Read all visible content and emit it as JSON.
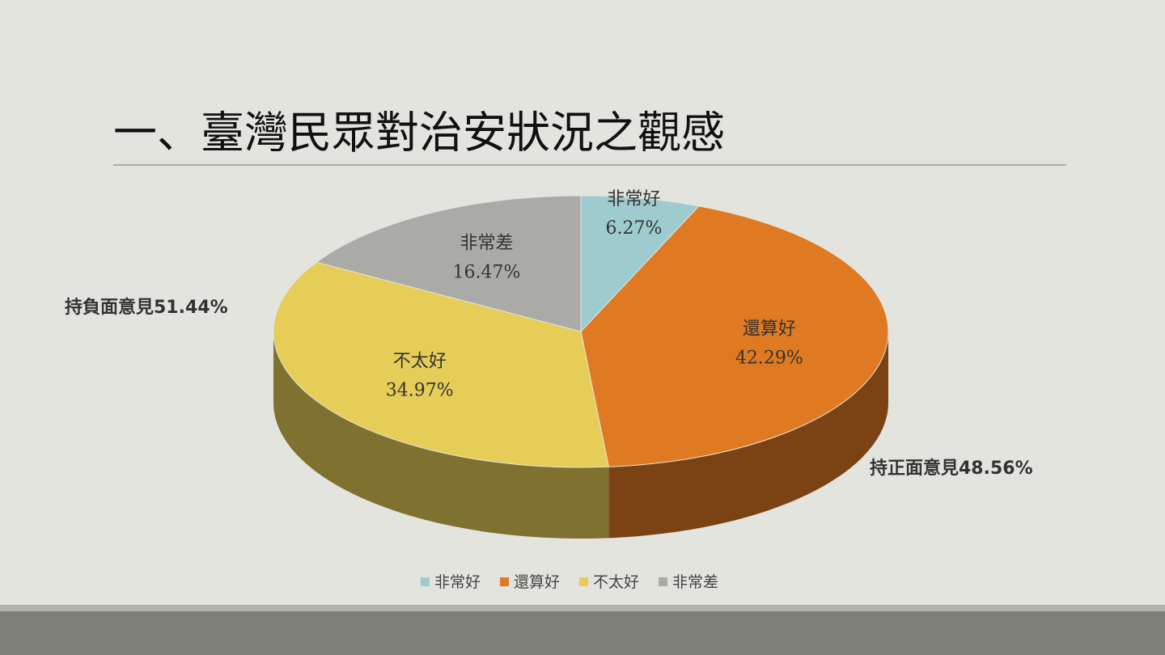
{
  "chart_data": {
    "type": "pie",
    "title": "一、臺灣民眾對治安狀況之觀感",
    "categories": [
      "非常好",
      "還算好",
      "不太好",
      "非常差"
    ],
    "values": [
      6.27,
      42.29,
      34.97,
      16.47
    ],
    "value_labels": [
      "6.27%",
      "42.29%",
      "34.97%",
      "16.47%"
    ],
    "colors": [
      "#9ecbcd",
      "#e07a22",
      "#e6cd58",
      "#aaaaa7"
    ],
    "annotations": [
      "持負面意見51.44%",
      "持正面意見48.56%"
    ],
    "legend": "bottom"
  }
}
